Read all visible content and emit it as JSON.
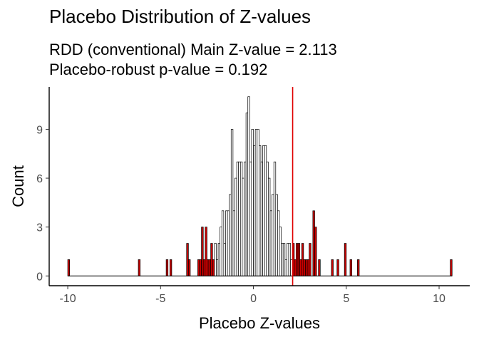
{
  "chart_data": {
    "type": "histogram",
    "title": "Placebo Distribution of Z-values",
    "subtitle_lines": [
      "RDD (conventional) Main Z-value = 2.113",
      "Placebo-robust p-value = 0.192"
    ],
    "xlabel": "Placebo Z-values",
    "ylabel": "Count",
    "xlim": [
      -11.0,
      11.65
    ],
    "ylim": [
      -0.6,
      11.6
    ],
    "x_ticks": [
      -10,
      -5,
      0,
      5,
      10
    ],
    "x_tick_labels": [
      "-10",
      "-5",
      "0",
      "5",
      "10"
    ],
    "y_ticks": [
      0,
      3,
      6,
      9
    ],
    "y_tick_labels": [
      "0",
      "3",
      "6",
      "9"
    ],
    "grid": false,
    "legend": "none",
    "bin_width": 0.1,
    "main_z_value": 2.113,
    "reference_line_x": 2.113,
    "colors": {
      "outside_bar_fill": "#cc0000",
      "inside_bar_fill": "#ffffff",
      "bar_stroke": "#000000",
      "reference_line": "#e00000"
    },
    "bins": [
      {
        "x": -10.0,
        "count": 1
      },
      {
        "x": -6.2,
        "count": 1
      },
      {
        "x": -4.7,
        "count": 1
      },
      {
        "x": -4.5,
        "count": 1
      },
      {
        "x": -3.6,
        "count": 2
      },
      {
        "x": -3.5,
        "count": 1
      },
      {
        "x": -3.0,
        "count": 1
      },
      {
        "x": -2.9,
        "count": 1
      },
      {
        "x": -2.8,
        "count": 3
      },
      {
        "x": -2.7,
        "count": 1
      },
      {
        "x": -2.6,
        "count": 3
      },
      {
        "x": -2.5,
        "count": 1
      },
      {
        "x": -2.4,
        "count": 1
      },
      {
        "x": -2.3,
        "count": 2
      },
      {
        "x": -2.2,
        "count": 1
      },
      {
        "x": -2.1,
        "count": 2
      },
      {
        "x": -2.0,
        "count": 1
      },
      {
        "x": -1.9,
        "count": 2
      },
      {
        "x": -1.8,
        "count": 3
      },
      {
        "x": -1.7,
        "count": 4
      },
      {
        "x": -1.6,
        "count": 2
      },
      {
        "x": -1.5,
        "count": 4
      },
      {
        "x": -1.4,
        "count": 4
      },
      {
        "x": -1.3,
        "count": 5
      },
      {
        "x": -1.2,
        "count": 9
      },
      {
        "x": -1.1,
        "count": 4
      },
      {
        "x": -1.0,
        "count": 6
      },
      {
        "x": -0.9,
        "count": 7
      },
      {
        "x": -0.8,
        "count": 7
      },
      {
        "x": -0.7,
        "count": 7
      },
      {
        "x": -0.6,
        "count": 6
      },
      {
        "x": -0.5,
        "count": 7
      },
      {
        "x": -0.4,
        "count": 10
      },
      {
        "x": -0.3,
        "count": 11
      },
      {
        "x": -0.2,
        "count": 7
      },
      {
        "x": -0.1,
        "count": 9
      },
      {
        "x": 0.0,
        "count": 8
      },
      {
        "x": 0.1,
        "count": 9
      },
      {
        "x": 0.2,
        "count": 9
      },
      {
        "x": 0.3,
        "count": 8
      },
      {
        "x": 0.4,
        "count": 7
      },
      {
        "x": 0.5,
        "count": 8
      },
      {
        "x": 0.6,
        "count": 8
      },
      {
        "x": 0.7,
        "count": 7
      },
      {
        "x": 0.8,
        "count": 6
      },
      {
        "x": 0.9,
        "count": 4
      },
      {
        "x": 1.0,
        "count": 5
      },
      {
        "x": 1.1,
        "count": 7
      },
      {
        "x": 1.2,
        "count": 5
      },
      {
        "x": 1.3,
        "count": 4
      },
      {
        "x": 1.4,
        "count": 3
      },
      {
        "x": 1.5,
        "count": 2
      },
      {
        "x": 1.6,
        "count": 2
      },
      {
        "x": 1.7,
        "count": 1
      },
      {
        "x": 1.8,
        "count": 2
      },
      {
        "x": 1.9,
        "count": 2
      },
      {
        "x": 2.0,
        "count": 1
      },
      {
        "x": 2.1,
        "count": 2
      },
      {
        "x": 2.2,
        "count": 1
      },
      {
        "x": 2.3,
        "count": 2
      },
      {
        "x": 2.4,
        "count": 2
      },
      {
        "x": 2.5,
        "count": 1
      },
      {
        "x": 2.6,
        "count": 2
      },
      {
        "x": 2.7,
        "count": 1
      },
      {
        "x": 2.8,
        "count": 1
      },
      {
        "x": 2.9,
        "count": 1
      },
      {
        "x": 3.0,
        "count": 2
      },
      {
        "x": 3.2,
        "count": 4
      },
      {
        "x": 3.3,
        "count": 3
      },
      {
        "x": 3.5,
        "count": 1
      },
      {
        "x": 4.2,
        "count": 1
      },
      {
        "x": 4.5,
        "count": 1
      },
      {
        "x": 4.9,
        "count": 2
      },
      {
        "x": 5.2,
        "count": 1
      },
      {
        "x": 5.6,
        "count": 1
      },
      {
        "x": 10.6,
        "count": 1
      }
    ]
  }
}
